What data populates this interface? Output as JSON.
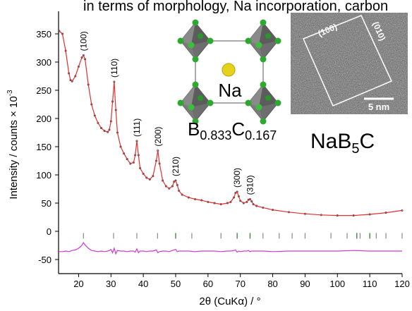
{
  "chart_data": {
    "type": "line",
    "header_text": "in terms of morphology, Na incorporation, carbon",
    "x_label": "2θ (CuKα) / °",
    "y_label_parts": [
      "Intensity / counts × 10",
      "-3"
    ],
    "xlim": [
      13.8,
      120
    ],
    "ylim": [
      -75,
      390
    ],
    "xticks": [
      20,
      30,
      40,
      50,
      60,
      70,
      80,
      90,
      100,
      110,
      120
    ],
    "yticks": [
      -50,
      0,
      50,
      100,
      150,
      200,
      250,
      300,
      350
    ],
    "x": [
      14,
      15,
      16,
      17,
      17.5,
      18,
      19,
      20,
      21,
      21.5,
      22,
      23,
      24,
      25,
      26,
      27,
      28,
      29,
      29.5,
      30,
      30.5,
      31,
      31.5,
      32,
      33,
      34,
      35,
      36,
      37,
      37.5,
      38,
      38.5,
      39,
      40,
      41,
      42,
      43,
      44,
      44.5,
      45,
      46,
      47,
      48,
      49,
      49.5,
      50,
      50.5,
      51,
      52,
      54,
      56,
      58,
      60,
      62,
      64,
      66,
      67,
      68,
      68.5,
      69,
      69.5,
      70,
      71,
      72,
      72.5,
      73,
      73.5,
      74,
      75,
      77,
      80,
      85,
      90,
      95,
      100,
      105,
      110,
      115,
      120
    ],
    "series": [
      {
        "color": "#333333",
        "style": "dots",
        "values": [
          355,
          350,
          320,
          280,
          268,
          266,
          275,
          292,
          308,
          312,
          305,
          260,
          225,
          205,
          192,
          183,
          178,
          176,
          180,
          195,
          230,
          265,
          215,
          175,
          150,
          138,
          128,
          120,
          122,
          135,
          160,
          135,
          112,
          102,
          95,
          92,
          98,
          125,
          143,
          120,
          90,
          80,
          76,
          80,
          88,
          90,
          82,
          72,
          65,
          60,
          57,
          55,
          52,
          50,
          48,
          50,
          52,
          60,
          68,
          70,
          62,
          54,
          50,
          52,
          56,
          57,
          53,
          48,
          45,
          42,
          38,
          34,
          31,
          29,
          28,
          28,
          30,
          33,
          37
        ]
      },
      {
        "color": "#e0302f",
        "style": "line",
        "values": [
          355,
          350,
          320,
          280,
          268,
          266,
          275,
          292,
          308,
          312,
          305,
          260,
          225,
          205,
          192,
          183,
          178,
          176,
          180,
          195,
          230,
          265,
          215,
          175,
          150,
          138,
          128,
          120,
          122,
          135,
          160,
          135,
          112,
          102,
          95,
          92,
          98,
          125,
          143,
          120,
          90,
          80,
          76,
          80,
          88,
          90,
          82,
          72,
          65,
          60,
          57,
          55,
          52,
          50,
          48,
          50,
          52,
          60,
          68,
          70,
          62,
          54,
          50,
          52,
          56,
          57,
          53,
          48,
          45,
          42,
          38,
          34,
          31,
          29,
          28,
          28,
          30,
          33,
          37
        ]
      },
      {
        "color": "#d03ad0",
        "style": "line",
        "values": [
          -36,
          -36,
          -35,
          -36,
          -35,
          -34,
          -33,
          -30,
          -25,
          -20,
          -24,
          -30,
          -34,
          -35,
          -36,
          -35,
          -36,
          -35,
          -34,
          -32,
          -38,
          -30,
          -40,
          -34,
          -35,
          -35,
          -36,
          -35,
          -35,
          -37,
          -31,
          -38,
          -35,
          -35,
          -36,
          -35,
          -35,
          -33,
          -38,
          -36,
          -35,
          -35,
          -36,
          -34,
          -33,
          -32,
          -36,
          -35,
          -35,
          -35,
          -36,
          -35,
          -35,
          -35,
          -36,
          -35,
          -35,
          -34,
          -33,
          -37,
          -35,
          -36,
          -35,
          -35,
          -34,
          -36,
          -35,
          -35,
          -35,
          -35,
          -36,
          -35,
          -35,
          -35,
          -35,
          -34,
          -35,
          -35,
          -35
        ]
      }
    ],
    "reflections": [
      {
        "color": "#888888",
        "x": [
          21.5,
          30.8,
          38,
          44.4,
          50,
          55,
          64,
          69,
          73,
          77,
          82,
          86,
          90,
          98,
          103,
          106,
          107,
          110,
          112,
          115,
          120
        ]
      },
      {
        "color": "#2e8b2e",
        "x": [
          50,
          69,
          73,
          106,
          110
        ]
      }
    ],
    "annotations": [
      {
        "text": "(100)",
        "x": 21.5
      },
      {
        "text": "(110)",
        "x": 31
      },
      {
        "text": "(111)",
        "x": 38
      },
      {
        "text": "(200)",
        "x": 44.5
      },
      {
        "text": "(210)",
        "x": 50
      },
      {
        "text": "(300)",
        "x": 69
      },
      {
        "text": "(310)",
        "x": 73
      }
    ],
    "structure_inset": {
      "atom": "Na",
      "formula_parts": [
        "B",
        "0.833",
        "C",
        "0.167"
      ]
    },
    "tem_inset": {
      "facet_a": "(100)",
      "facet_b": "(010)",
      "scale_bar": "5 nm"
    },
    "compound_parts": [
      "NaB",
      "5",
      "C"
    ]
  }
}
